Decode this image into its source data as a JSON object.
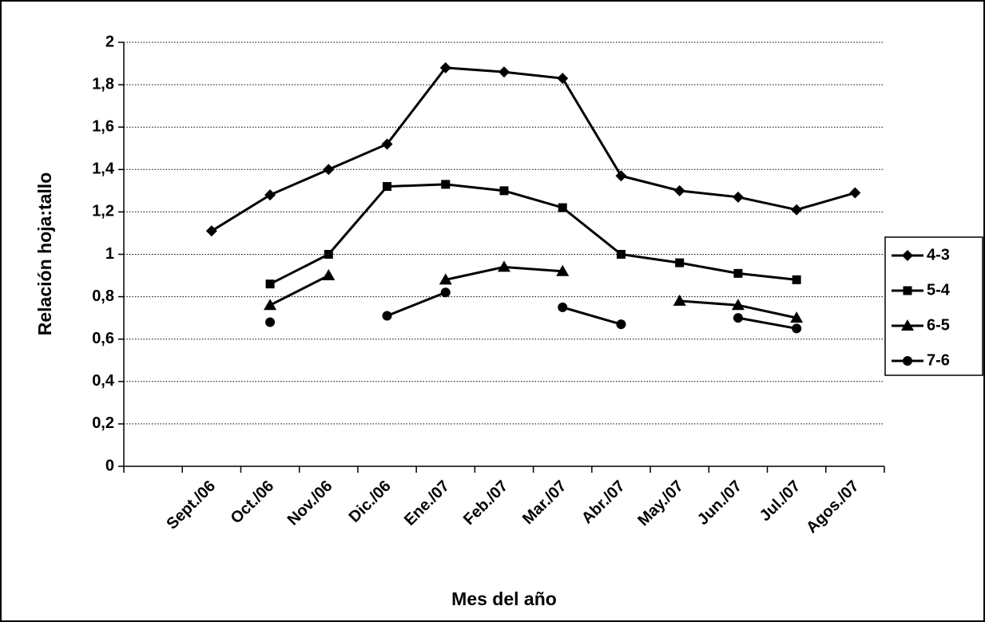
{
  "chart_data": {
    "type": "line",
    "x_label": "Mes del año",
    "y_label": "Relación hoja:tallo",
    "categories": [
      null,
      "Sept./06",
      "Oct./06",
      "Nov./06",
      "Dic./06",
      "Ene./07",
      "Feb./07",
      "Mar./07",
      "Abr./07",
      "May./07",
      "Jun./07",
      "Jul./07",
      "Agos./07"
    ],
    "series": [
      {
        "name": "4-3",
        "color": "#000000",
        "marker": "diamond",
        "values": [
          null,
          1.11,
          1.28,
          1.4,
          1.52,
          1.88,
          1.86,
          1.83,
          1.37,
          1.3,
          1.27,
          1.21,
          1.29
        ]
      },
      {
        "name": "5-4",
        "color": "#000000",
        "marker": "square",
        "values": [
          null,
          null,
          0.86,
          1.0,
          1.32,
          1.33,
          1.3,
          1.22,
          1.0,
          0.96,
          0.91,
          0.88,
          null
        ]
      },
      {
        "name": "6-5",
        "color": "#000000",
        "marker": "triangle",
        "values": [
          null,
          null,
          0.76,
          0.9,
          null,
          0.88,
          0.94,
          0.92,
          null,
          0.78,
          0.76,
          0.7,
          null
        ]
      },
      {
        "name": "7-6",
        "color": "#000000",
        "marker": "circle",
        "values": [
          null,
          null,
          0.68,
          null,
          0.71,
          0.82,
          null,
          0.75,
          0.67,
          null,
          0.7,
          0.65,
          null
        ]
      }
    ],
    "ylim": [
      0,
      2
    ],
    "yticks": [
      0,
      {
        "value": 0.2,
        "label": "0,2"
      },
      {
        "value": 0.4,
        "label": "0,4"
      },
      {
        "value": 0.6,
        "label": "0,6"
      },
      {
        "value": 0.8,
        "label": "0,8"
      },
      1,
      {
        "value": 1.2,
        "label": "1,2"
      },
      {
        "value": 1.4,
        "label": "1,4"
      },
      {
        "value": 1.6,
        "label": "1,6"
      },
      {
        "value": 1.8,
        "label": "1,8"
      },
      2
    ],
    "grid": true,
    "legend": "right"
  }
}
